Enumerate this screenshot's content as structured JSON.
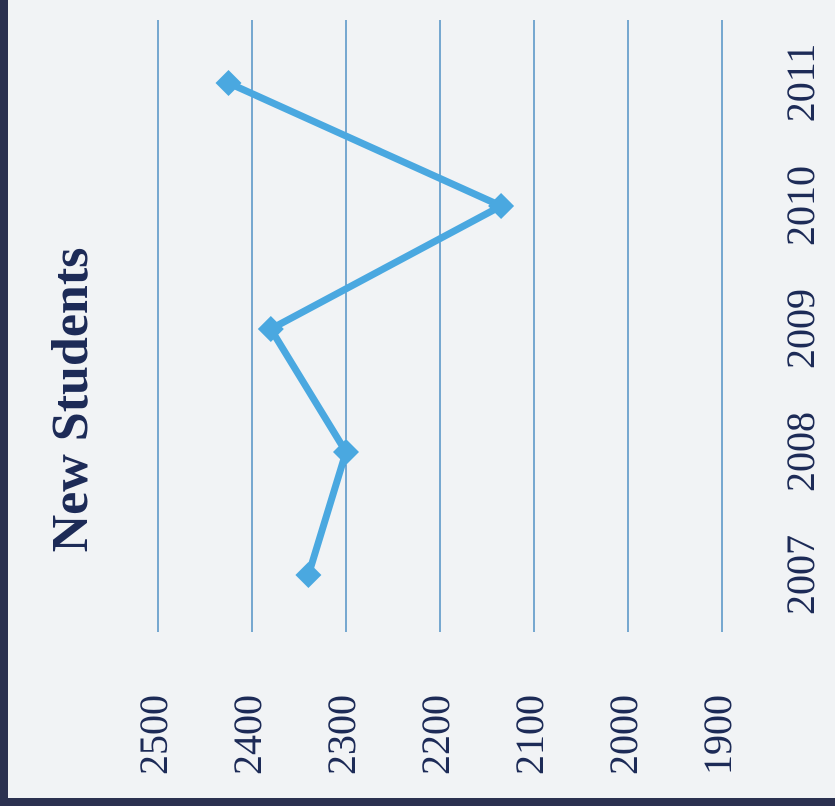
{
  "chart_data": {
    "type": "line",
    "title": "New Students",
    "categories": [
      "2007",
      "2008",
      "2009",
      "2010",
      "2011"
    ],
    "values": [
      2340,
      2300,
      2380,
      2135,
      2425
    ],
    "color": "#4aa8e0",
    "ylim": [
      1900,
      2500
    ],
    "yticks": [
      1900,
      2000,
      2100,
      2200,
      2300,
      2400,
      2500
    ],
    "grid": true
  }
}
